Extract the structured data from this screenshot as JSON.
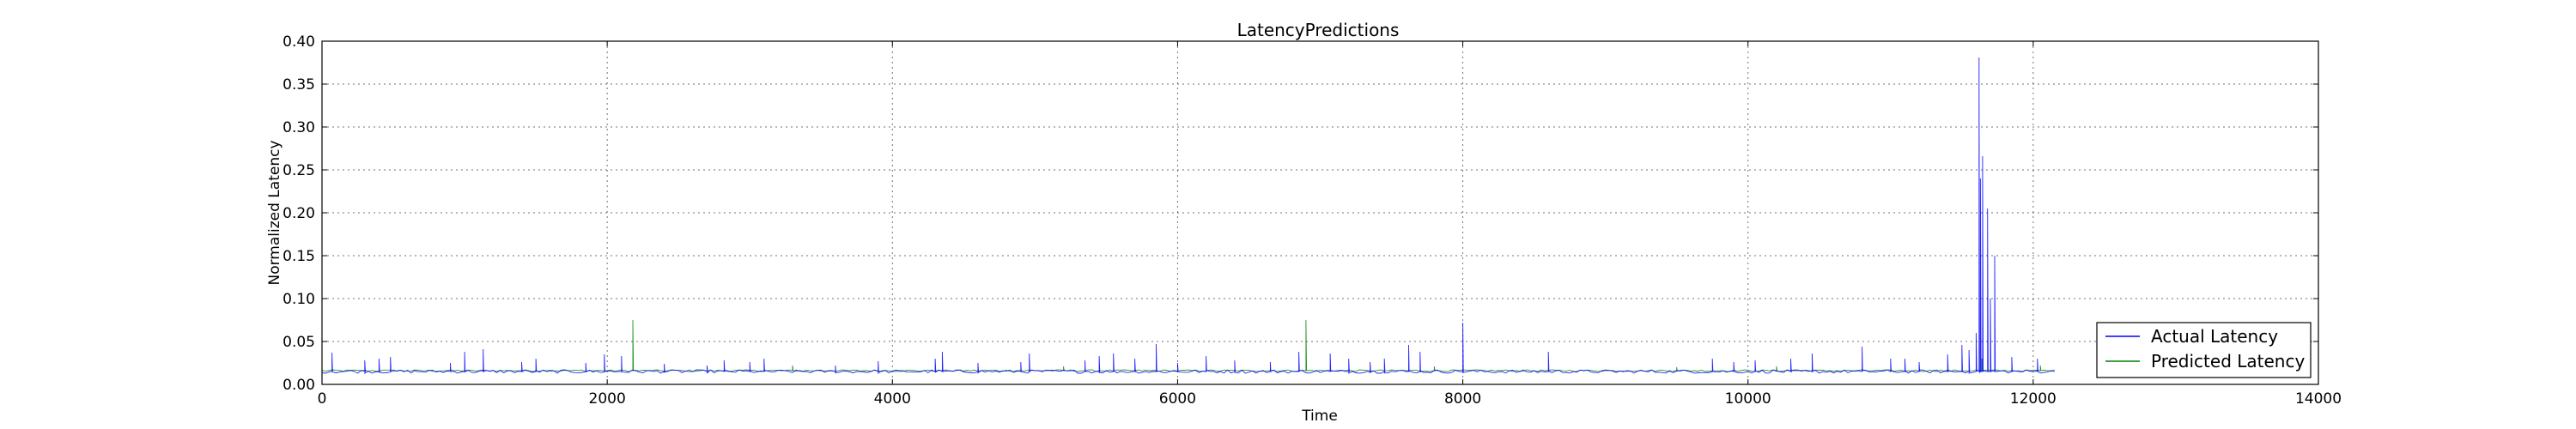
{
  "chart_data": {
    "type": "line",
    "title": "LatencyPredictions",
    "xlabel": "Time",
    "ylabel": "Normalized Latency",
    "xlim": [
      0,
      14000
    ],
    "ylim": [
      0.0,
      0.4
    ],
    "x_ticks": [
      0,
      2000,
      4000,
      6000,
      8000,
      10000,
      12000,
      14000
    ],
    "x_tick_labels": [
      "0",
      "2000",
      "4000",
      "6000",
      "8000",
      "10000",
      "12000",
      "14000"
    ],
    "y_ticks": [
      0.0,
      0.05,
      0.1,
      0.15,
      0.2,
      0.25,
      0.3,
      0.35,
      0.4
    ],
    "y_tick_labels": [
      "0.00",
      "0.05",
      "0.10",
      "0.15",
      "0.20",
      "0.25",
      "0.30",
      "0.35",
      "0.40"
    ],
    "grid": true,
    "legend_position": "bottom-right",
    "baseline_actual": 0.015,
    "baseline_predicted": 0.016,
    "x_max": 12150,
    "series": [
      {
        "name": "Actual Latency",
        "color": "#0000ff",
        "spikes": [
          [
            70,
            0.037
          ],
          [
            300,
            0.028
          ],
          [
            400,
            0.03
          ],
          [
            480,
            0.032
          ],
          [
            900,
            0.025
          ],
          [
            1000,
            0.038
          ],
          [
            1130,
            0.041
          ],
          [
            1400,
            0.026
          ],
          [
            1500,
            0.03
          ],
          [
            1850,
            0.025
          ],
          [
            1980,
            0.035
          ],
          [
            2100,
            0.033
          ],
          [
            2400,
            0.024
          ],
          [
            2700,
            0.022
          ],
          [
            2820,
            0.028
          ],
          [
            3000,
            0.026
          ],
          [
            3100,
            0.03
          ],
          [
            3600,
            0.022
          ],
          [
            3900,
            0.027
          ],
          [
            4300,
            0.03
          ],
          [
            4350,
            0.038
          ],
          [
            4600,
            0.025
          ],
          [
            4900,
            0.026
          ],
          [
            4960,
            0.036
          ],
          [
            5350,
            0.028
          ],
          [
            5450,
            0.033
          ],
          [
            5550,
            0.036
          ],
          [
            5700,
            0.03
          ],
          [
            5850,
            0.047
          ],
          [
            6000,
            0.025
          ],
          [
            6200,
            0.033
          ],
          [
            6400,
            0.028
          ],
          [
            6650,
            0.026
          ],
          [
            6850,
            0.038
          ],
          [
            7070,
            0.036
          ],
          [
            7200,
            0.03
          ],
          [
            7350,
            0.026
          ],
          [
            7450,
            0.03
          ],
          [
            7620,
            0.046
          ],
          [
            7700,
            0.038
          ],
          [
            8000,
            0.072
          ],
          [
            8600,
            0.038
          ],
          [
            9750,
            0.03
          ],
          [
            9900,
            0.026
          ],
          [
            10050,
            0.028
          ],
          [
            10300,
            0.03
          ],
          [
            10450,
            0.036
          ],
          [
            10800,
            0.044
          ],
          [
            11000,
            0.03
          ],
          [
            11100,
            0.03
          ],
          [
            11200,
            0.026
          ],
          [
            11400,
            0.035
          ],
          [
            11500,
            0.046
          ],
          [
            11550,
            0.04
          ],
          [
            11600,
            0.06
          ],
          [
            11620,
            0.381
          ],
          [
            11630,
            0.24
          ],
          [
            11645,
            0.266
          ],
          [
            11680,
            0.205
          ],
          [
            11700,
            0.1
          ],
          [
            11730,
            0.15
          ],
          [
            11850,
            0.032
          ],
          [
            12030,
            0.03
          ]
        ]
      },
      {
        "name": "Predicted Latency",
        "color": "#008000",
        "spikes": [
          [
            2180,
            0.075
          ],
          [
            6900,
            0.075
          ],
          [
            3300,
            0.022
          ],
          [
            5200,
            0.021
          ],
          [
            7800,
            0.021
          ],
          [
            9500,
            0.02
          ],
          [
            10200,
            0.021
          ],
          [
            11640,
            0.03
          ],
          [
            12050,
            0.022
          ]
        ]
      }
    ]
  }
}
